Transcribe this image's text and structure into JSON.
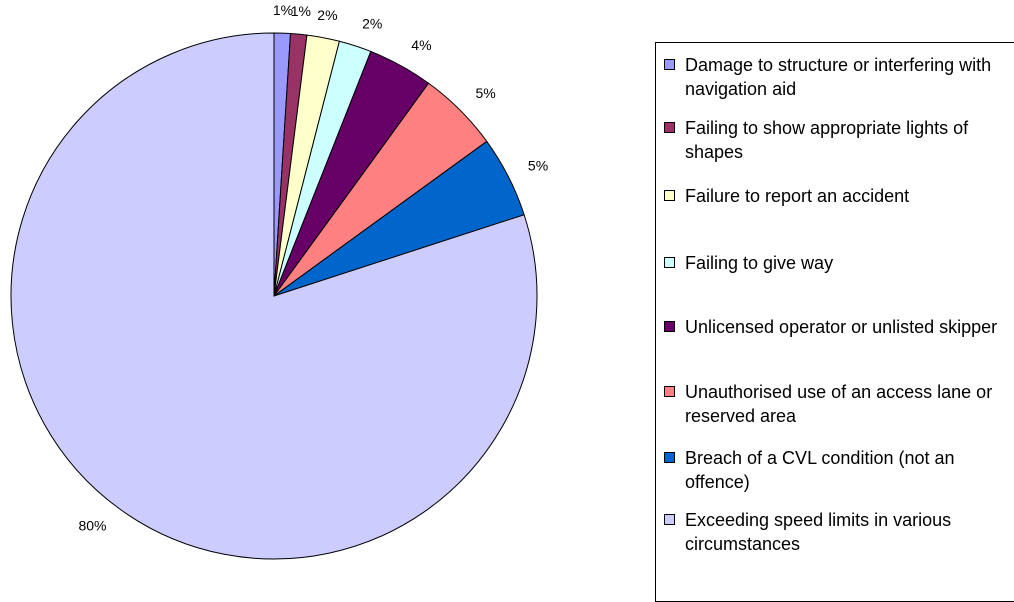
{
  "chart_data": {
    "type": "pie",
    "categories": [
      "Damage to structure or interfering with navigation aid",
      "Failing to show appropriate lights of shapes",
      "Failure to report an accident",
      "Failing to give way",
      "Unlicensed operator or unlisted skipper",
      "Unauthorised use of an access lane or reserved area",
      "Breach of a CVL condition (not an offence)",
      "Exceeding speed limits in various circumstances"
    ],
    "values": [
      1,
      1,
      2,
      2,
      4,
      5,
      5,
      80
    ],
    "value_labels": [
      "1%",
      "1%",
      "2%",
      "2%",
      "4%",
      "5%",
      "5%",
      "80%"
    ],
    "colors": [
      "#9999ff",
      "#993366",
      "#ffffcc",
      "#ccffff",
      "#660066",
      "#ff8080",
      "#0066cc",
      "#ccccff"
    ],
    "legend": "right"
  }
}
